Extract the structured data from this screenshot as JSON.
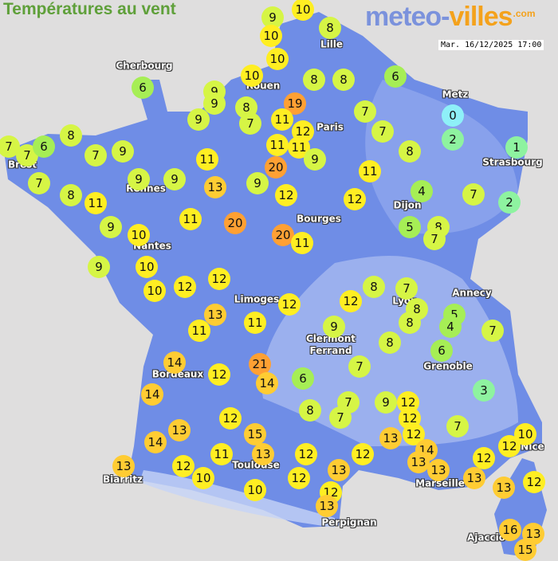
{
  "title": "Températures au vent",
  "logo": {
    "part1": "meteo-",
    "part2": "villes",
    "suffix": ".com"
  },
  "datetime": "Mar. 16/12/2025 17:00",
  "colors": {
    "land": "#6f8de6",
    "sea": "#dfdede",
    "title": "#5fa03a"
  },
  "cities": [
    "Cherbourg",
    "Brest",
    "Rennes",
    "Nantes",
    "Rouen",
    "Lille",
    "Paris",
    "Metz",
    "Strasbourg",
    "Dijon",
    "Bourges",
    "Limoges",
    "Clermont\nFerrand",
    "Lyon",
    "Annecy",
    "Grenoble",
    "Bordeaux",
    "Biarritz",
    "Toulouse",
    "Marseille",
    "Nice",
    "Perpignan",
    "Ajaccio"
  ],
  "temperatures": [
    9,
    10,
    10,
    8,
    10,
    6,
    10,
    9,
    9,
    8,
    7,
    9,
    19,
    11,
    8,
    8,
    6,
    7,
    12,
    7,
    0,
    2,
    1,
    7,
    7,
    6,
    8,
    7,
    9,
    7,
    8,
    11,
    9,
    9,
    11,
    13,
    11,
    11,
    9,
    20,
    9,
    12,
    11,
    8,
    12,
    4,
    7,
    2,
    9,
    10,
    11,
    20,
    20,
    11,
    5,
    8,
    7,
    9,
    10,
    10,
    12,
    12,
    13,
    11,
    11,
    12,
    12,
    8,
    7,
    8,
    8,
    5,
    4,
    7,
    9,
    8,
    6,
    14,
    12,
    21,
    14,
    6,
    14,
    7,
    7,
    7,
    8,
    9,
    12,
    12,
    12,
    12,
    15,
    13,
    13,
    14,
    13,
    12,
    11,
    10,
    10,
    12,
    12,
    12,
    13,
    14,
    13,
    13,
    13,
    7,
    3,
    10,
    12,
    12,
    13,
    12,
    13,
    12,
    13,
    16,
    13,
    15
  ]
}
